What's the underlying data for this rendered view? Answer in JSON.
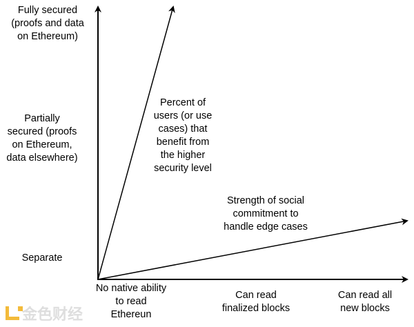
{
  "y_axis_labels": [
    "Fully secured\n(proofs and data\non Ethereum)",
    "Partially\nsecured (proofs\non Ethereum,\ndata elsewhere)",
    "Separate"
  ],
  "x_axis_labels": [
    "No native ability\nto read\nEthereun",
    "Can read\nfinalized blocks",
    "Can read all\nnew blocks"
  ],
  "arrow_labels": {
    "steep": "Percent of\nusers (or use\ncases) that\nbenefit from\nthe higher\nsecurity level",
    "shallow": "Strength of social\ncommitment to\nhandle edge cases"
  },
  "watermark": "金色财经",
  "colors": {
    "line": "#000000",
    "watermark_logo": "#f2b019"
  }
}
